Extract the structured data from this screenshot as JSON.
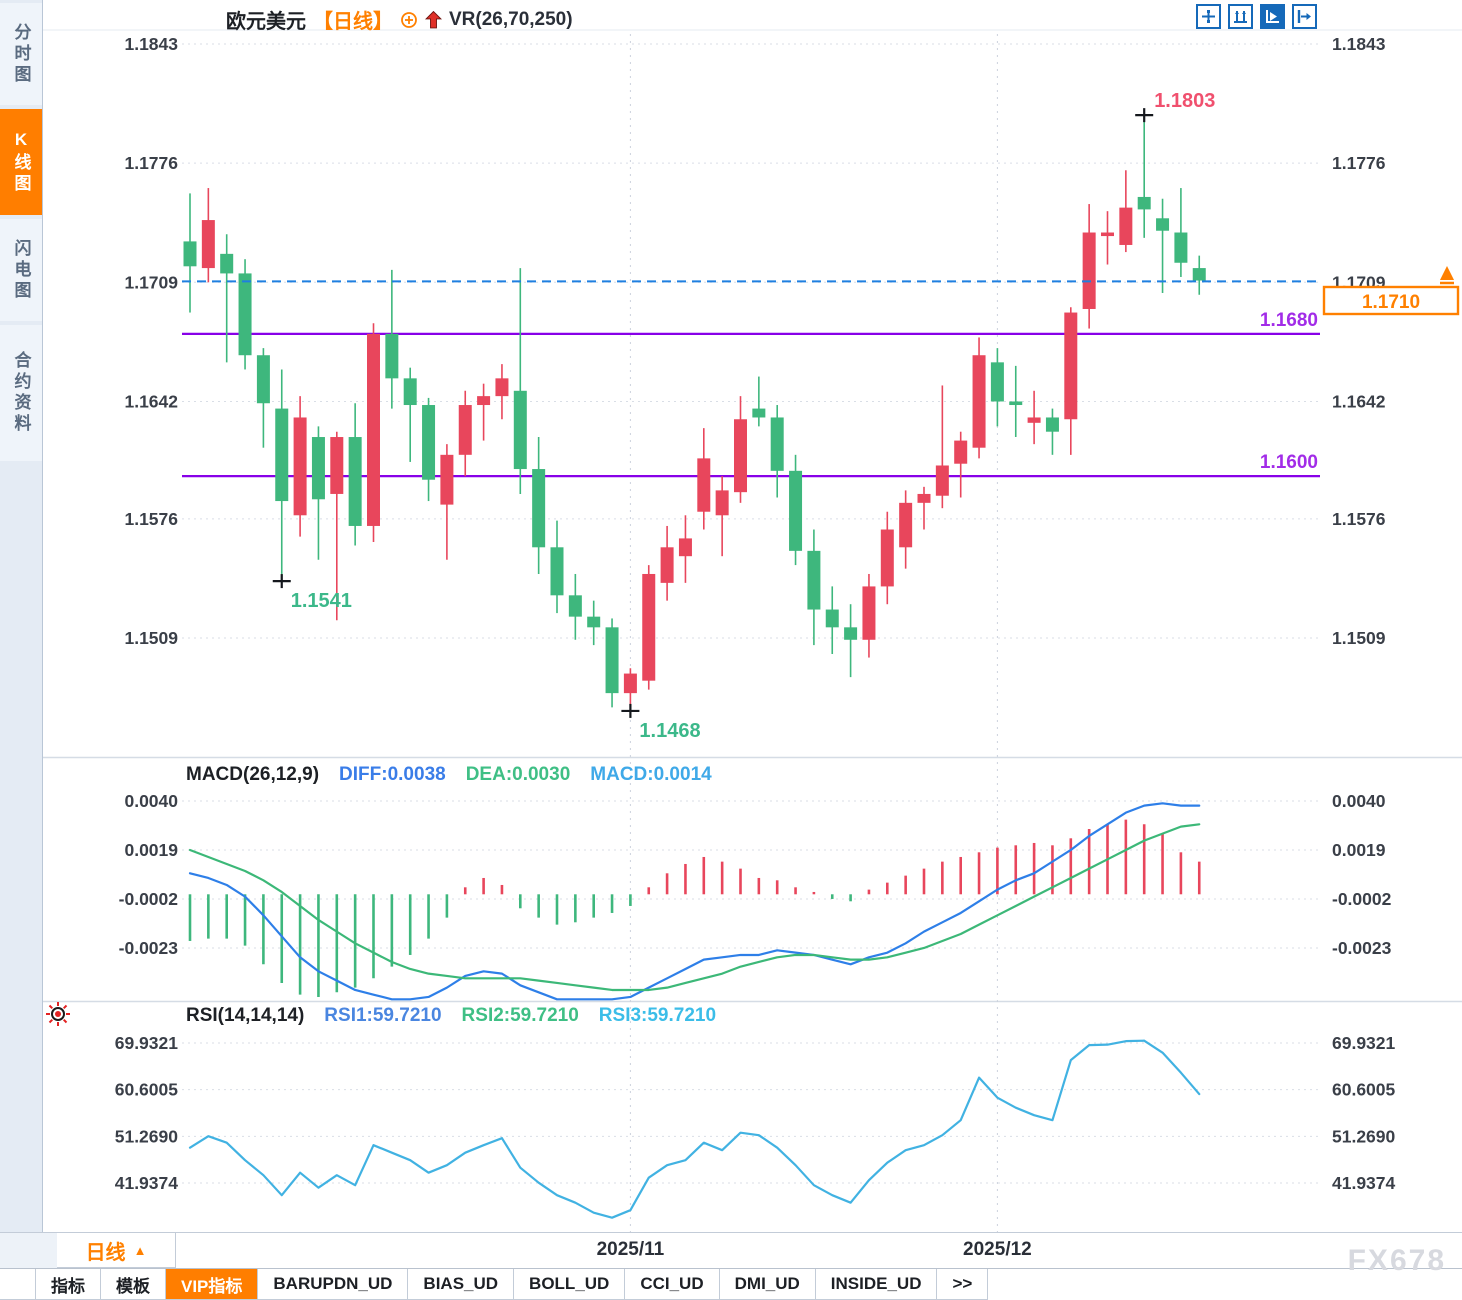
{
  "header": {
    "symbol": "欧元美元",
    "period": "【日线】",
    "overlay_indicator": "VR(26,70,250)"
  },
  "toolbar": {
    "icons": [
      {
        "name": "crosshair-icon",
        "active": false
      },
      {
        "name": "axis-zoom-icon",
        "active": false
      },
      {
        "name": "axis-play-icon",
        "active": true
      },
      {
        "name": "pane-shift-icon",
        "active": false
      }
    ]
  },
  "sidebar": {
    "tabs": [
      {
        "label": "分时图",
        "active": false
      },
      {
        "label": "K线图",
        "active": true
      },
      {
        "label": "闪电图",
        "active": false
      },
      {
        "label": "合约资料",
        "active": false
      }
    ]
  },
  "xaxis": {
    "period_button": "日线",
    "labels": [
      {
        "text": "2025/11",
        "candle_index": 24
      },
      {
        "text": "2025/12",
        "candle_index": 44
      }
    ]
  },
  "bottom_tabs": [
    "指标",
    "模板",
    "VIP指标",
    "BARUPDN_UD",
    "BIAS_UD",
    "BOLL_UD",
    "CCI_UD",
    "DMI_UD",
    "INSIDE_UD",
    ">>"
  ],
  "bottom_tabs_active": "VIP指标",
  "watermark": "FX678",
  "colors": {
    "up_candle": "#e8465c",
    "down_candle": "#3eb77d",
    "accent_orange": "#ff8000",
    "purple_level": "#8800e8",
    "purple_label": "#a22ce8",
    "current_price_dash": "#1f7fe0",
    "diff_line": "#2e7fe8",
    "dea_line": "#3cb878",
    "rsi_line": "#41b2e2",
    "annotation_high": "#f0506e",
    "annotation_low": "#3cb88a"
  },
  "chart_data": [
    {
      "type": "candlestick",
      "title": "欧元美元 日线",
      "convention": "red=up, green=down",
      "price_axis_ticks": [
        "1.1843",
        "1.1776",
        "1.1709",
        "1.1642",
        "1.1576",
        "1.1509"
      ],
      "ylim": [
        1.144,
        1.1875
      ],
      "candles": [
        [
          1.1732,
          1.1759,
          1.1692,
          1.1718
        ],
        [
          1.1717,
          1.1762,
          1.1709,
          1.1744
        ],
        [
          1.1725,
          1.1736,
          1.1664,
          1.1714
        ],
        [
          1.1714,
          1.1722,
          1.166,
          1.1668
        ],
        [
          1.1668,
          1.1672,
          1.1616,
          1.1641
        ],
        [
          1.1638,
          1.166,
          1.1541,
          1.1586
        ],
        [
          1.1578,
          1.1645,
          1.1566,
          1.1633
        ],
        [
          1.1622,
          1.1628,
          1.1553,
          1.1587
        ],
        [
          1.159,
          1.1625,
          1.1519,
          1.1622
        ],
        [
          1.1622,
          1.1641,
          1.1561,
          1.1572
        ],
        [
          1.1572,
          1.1686,
          1.1563,
          1.168
        ],
        [
          1.168,
          1.1716,
          1.1638,
          1.1655
        ],
        [
          1.1655,
          1.1661,
          1.1608,
          1.164
        ],
        [
          1.164,
          1.1644,
          1.1586,
          1.1598
        ],
        [
          1.1584,
          1.1618,
          1.1553,
          1.1612
        ],
        [
          1.1612,
          1.1648,
          1.16,
          1.164
        ],
        [
          1.164,
          1.1652,
          1.162,
          1.1645
        ],
        [
          1.1645,
          1.1663,
          1.1632,
          1.1655
        ],
        [
          1.1648,
          1.1717,
          1.159,
          1.1604
        ],
        [
          1.1604,
          1.1622,
          1.1545,
          1.156
        ],
        [
          1.156,
          1.1575,
          1.1523,
          1.1533
        ],
        [
          1.1533,
          1.1545,
          1.1508,
          1.1521
        ],
        [
          1.1521,
          1.153,
          1.1505,
          1.1515
        ],
        [
          1.1515,
          1.152,
          1.147,
          1.1478
        ],
        [
          1.1478,
          1.1492,
          1.1468,
          1.1489
        ],
        [
          1.1485,
          1.155,
          1.148,
          1.1545
        ],
        [
          1.154,
          1.1572,
          1.153,
          1.156
        ],
        [
          1.1555,
          1.1578,
          1.154,
          1.1565
        ],
        [
          1.158,
          1.1627,
          1.157,
          1.161
        ],
        [
          1.1578,
          1.16,
          1.1555,
          1.1592
        ],
        [
          1.1591,
          1.1645,
          1.1585,
          1.1632
        ],
        [
          1.1638,
          1.1656,
          1.1628,
          1.1633
        ],
        [
          1.1633,
          1.164,
          1.1588,
          1.1603
        ],
        [
          1.1603,
          1.1612,
          1.155,
          1.1558
        ],
        [
          1.1558,
          1.157,
          1.1505,
          1.1525
        ],
        [
          1.1525,
          1.1538,
          1.15,
          1.1515
        ],
        [
          1.1515,
          1.1528,
          1.1487,
          1.1508
        ],
        [
          1.1508,
          1.1545,
          1.1498,
          1.1538
        ],
        [
          1.1538,
          1.158,
          1.1528,
          1.157
        ],
        [
          1.156,
          1.1592,
          1.1548,
          1.1585
        ],
        [
          1.1585,
          1.1594,
          1.157,
          1.159
        ],
        [
          1.1589,
          1.1651,
          1.1582,
          1.1606
        ],
        [
          1.1607,
          1.1625,
          1.1588,
          1.162
        ],
        [
          1.1616,
          1.1678,
          1.161,
          1.1668
        ],
        [
          1.1664,
          1.1672,
          1.1628,
          1.1642
        ],
        [
          1.1642,
          1.1662,
          1.1622,
          1.164
        ],
        [
          1.163,
          1.1648,
          1.1618,
          1.1633
        ],
        [
          1.1633,
          1.1638,
          1.1612,
          1.1625
        ],
        [
          1.1632,
          1.1695,
          1.1612,
          1.1692
        ],
        [
          1.1694,
          1.1753,
          1.1683,
          1.1737
        ],
        [
          1.1735,
          1.1749,
          1.1719,
          1.1737
        ],
        [
          1.173,
          1.1772,
          1.1726,
          1.1751
        ],
        [
          1.1757,
          1.1803,
          1.1734,
          1.175
        ],
        [
          1.1745,
          1.1756,
          1.1703,
          1.1738
        ],
        [
          1.1737,
          1.1762,
          1.1712,
          1.172
        ],
        [
          1.1717,
          1.1724,
          1.1702,
          1.171
        ]
      ],
      "support_resistance_levels": [
        {
          "price": 1.168,
          "label": "1.1680"
        },
        {
          "price": 1.16,
          "label": "1.1600"
        }
      ],
      "current_price": {
        "label": "1.1710",
        "price": 1.17095
      },
      "annotations": [
        {
          "text": "1.1803",
          "candle_index": 52,
          "position": "high"
        },
        {
          "text": "1.1541",
          "candle_index": 5,
          "position": "low"
        },
        {
          "text": "1.1468",
          "candle_index": 24,
          "position": "low"
        }
      ]
    },
    {
      "type": "macd",
      "title": "MACD(26,12,9)",
      "value_labels": [
        "DIFF:0.0038",
        "DEA:0.0030",
        "MACD:0.0014"
      ],
      "axis_ticks": [
        "0.0040",
        "0.0019",
        "-0.0002",
        "-0.0023"
      ],
      "diff": [
        0.0009,
        0.0007,
        0.0004,
        -0.0001,
        -0.0009,
        -0.0018,
        -0.0027,
        -0.0033,
        -0.0037,
        -0.0041,
        -0.0043,
        -0.0045,
        -0.0045,
        -0.0044,
        -0.004,
        -0.0035,
        -0.0033,
        -0.0034,
        -0.0039,
        -0.0042,
        -0.0045,
        -0.0045,
        -0.0045,
        -0.0045,
        -0.0044,
        -0.004,
        -0.0036,
        -0.0032,
        -0.0028,
        -0.0027,
        -0.0026,
        -0.0026,
        -0.0024,
        -0.0025,
        -0.0026,
        -0.0028,
        -0.003,
        -0.0027,
        -0.0025,
        -0.0021,
        -0.0016,
        -0.0012,
        -0.0008,
        -0.0003,
        0.0002,
        0.0006,
        0.0009,
        0.0014,
        0.0019,
        0.0025,
        0.003,
        0.0035,
        0.0038,
        0.0039,
        0.0038,
        0.0038
      ],
      "dea": [
        0.0019,
        0.0016,
        0.0013,
        0.001,
        0.0006,
        0.0001,
        -0.0005,
        -0.0011,
        -0.0016,
        -0.0021,
        -0.0025,
        -0.0029,
        -0.0032,
        -0.0034,
        -0.0035,
        -0.0036,
        -0.0036,
        -0.0036,
        -0.0036,
        -0.0037,
        -0.0038,
        -0.0039,
        -0.004,
        -0.0041,
        -0.0041,
        -0.0041,
        -0.004,
        -0.0038,
        -0.0036,
        -0.0034,
        -0.0031,
        -0.0029,
        -0.0027,
        -0.0026,
        -0.0026,
        -0.0027,
        -0.0028,
        -0.0028,
        -0.0027,
        -0.0025,
        -0.0023,
        -0.002,
        -0.0017,
        -0.0013,
        -0.0009,
        -0.0005,
        -0.0001,
        0.0003,
        0.0007,
        0.0011,
        0.0015,
        0.0019,
        0.0023,
        0.0026,
        0.0029,
        0.003
      ],
      "histogram": [
        -0.002,
        -0.0019,
        -0.0019,
        -0.0022,
        -0.003,
        -0.0038,
        -0.0043,
        -0.0044,
        -0.0042,
        -0.004,
        -0.0036,
        -0.0031,
        -0.0026,
        -0.0019,
        -0.001,
        0.0003,
        0.0007,
        0.0004,
        -0.0006,
        -0.001,
        -0.0013,
        -0.0012,
        -0.001,
        -0.0008,
        -0.0005,
        0.0003,
        0.0009,
        0.0013,
        0.0016,
        0.0014,
        0.0011,
        0.0007,
        0.0006,
        0.0003,
        0.0001,
        -0.0002,
        -0.0003,
        0.0002,
        0.0005,
        0.0008,
        0.0011,
        0.0014,
        0.0016,
        0.0018,
        0.002,
        0.0021,
        0.0022,
        0.0021,
        0.0024,
        0.0028,
        0.003,
        0.0032,
        0.003,
        0.0026,
        0.0018,
        0.0014
      ]
    },
    {
      "type": "rsi",
      "title": "RSI(14,14,14)",
      "value_labels": [
        "RSI1:59.7210",
        "RSI2:59.7210",
        "RSI3:59.7210"
      ],
      "axis_ticks": [
        "69.9321",
        "60.6005",
        "51.2690",
        "41.9374"
      ],
      "rsi": [
        49.0,
        51.3,
        50.0,
        46.5,
        43.5,
        39.5,
        44.0,
        41.0,
        43.5,
        41.5,
        49.5,
        48.0,
        46.5,
        44.0,
        45.5,
        48.0,
        49.5,
        50.9,
        45.0,
        42.0,
        39.5,
        38.0,
        36.0,
        35.0,
        36.5,
        43.0,
        45.5,
        46.5,
        50.0,
        48.5,
        52.0,
        51.5,
        49.0,
        45.5,
        41.5,
        39.5,
        38.0,
        42.5,
        46.0,
        48.5,
        49.5,
        51.5,
        54.5,
        63.0,
        59.0,
        57.0,
        55.5,
        54.5,
        66.5,
        69.5,
        69.6,
        70.3,
        70.4,
        68.0,
        64.0,
        59.721
      ]
    }
  ]
}
